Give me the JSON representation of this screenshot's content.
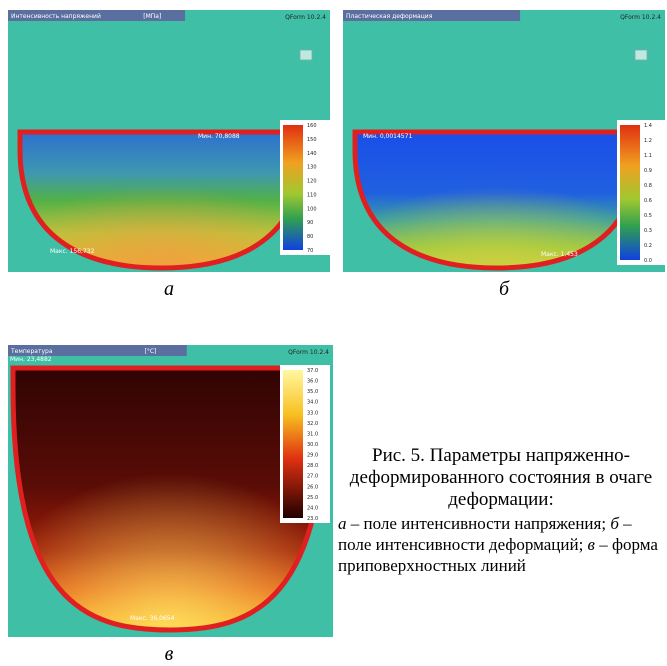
{
  "panels": [
    {
      "label": "а",
      "header": "Интенсивность напряжений",
      "unit": "[МПа]",
      "software": "QForm 10.2.4",
      "colorbar_ticks": [
        "160",
        "150",
        "140",
        "130",
        "120",
        "110",
        "100",
        "90",
        "80",
        "70"
      ],
      "min_label": "Мин. 70,8088",
      "max_label": "Макс. 156,732"
    },
    {
      "label": "б",
      "header": "Пластическая деформация",
      "software": "QForm 10.2.4",
      "colorbar_ticks": [
        "1.4",
        "1.2",
        "1.1",
        "0.9",
        "0.8",
        "0.6",
        "0.5",
        "0.3",
        "0.2",
        "0.0"
      ],
      "min_label": "Мин. 0,0014571",
      "max_label": "Макс. 1,453"
    },
    {
      "label": "в",
      "header": "Температура",
      "unit": "[°C]",
      "software": "QForm 10.2.4",
      "colorbar_ticks": [
        "37.0",
        "36.0",
        "35.0",
        "34.0",
        "33.0",
        "32.0",
        "31.0",
        "30.0",
        "29.0",
        "28.0",
        "27.0",
        "26.0",
        "25.0",
        "24.0",
        "23.0"
      ],
      "min_label": "Мин. 23,4882",
      "max_label": "Макс. 36,0654"
    }
  ],
  "caption": {
    "title": "Рис. 5. Параметры напряженно-деформированного состояния в очаге деформации:",
    "items": [
      {
        "letter": "а",
        "text": " – поле интенсивности напряжения;"
      },
      {
        "letter": "б",
        "text": " – поле интенсивности деформаций;"
      },
      {
        "letter": "в",
        "text": " – форма приповерхностных линий"
      }
    ]
  }
}
